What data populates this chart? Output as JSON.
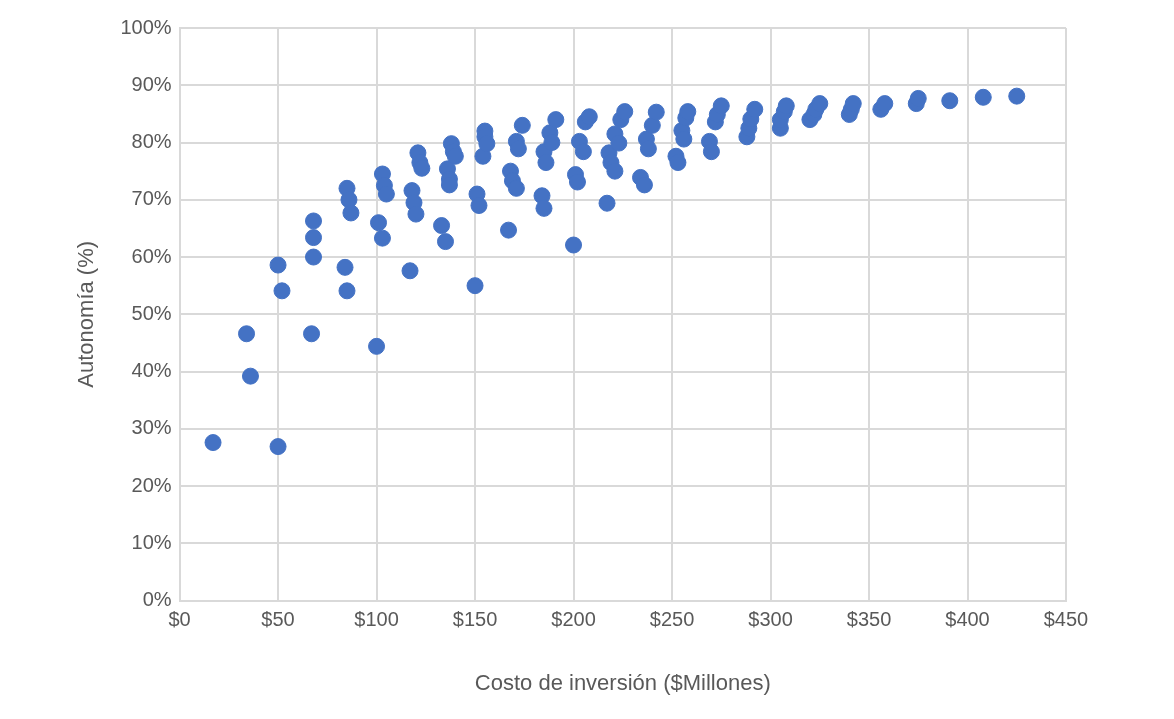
{
  "chart_data": {
    "type": "scatter",
    "xlabel": "Costo de inversión ($Millones)",
    "ylabel": "Autonomía (%)",
    "series": [
      {
        "color": "#4472c4",
        "x": [
          17,
          50,
          34,
          36,
          50,
          52,
          67,
          68,
          68,
          68,
          84,
          85,
          85,
          86,
          87,
          100,
          101,
          103,
          103,
          104,
          105,
          117,
          118,
          119,
          120,
          121,
          122,
          123,
          133,
          135,
          136,
          137,
          137,
          138,
          139,
          140,
          150,
          151,
          152,
          154,
          155,
          155,
          156,
          167,
          168,
          169,
          171,
          171,
          172,
          174,
          184,
          185,
          185,
          186,
          188,
          189,
          191,
          200,
          201,
          202,
          203,
          205,
          206,
          208,
          217,
          218,
          219,
          221,
          221,
          223,
          224,
          226,
          234,
          236,
          237,
          238,
          240,
          242,
          252,
          253,
          255,
          256,
          257,
          258,
          269,
          270,
          272,
          273,
          275,
          288,
          289,
          290,
          292,
          305,
          305,
          307,
          308,
          320,
          322,
          323,
          325,
          340,
          341,
          342,
          356,
          358,
          374,
          375,
          391,
          408,
          425
        ],
        "values": [
          27.6,
          26.9,
          46.6,
          39.2,
          58.6,
          54.1,
          46.6,
          66.3,
          63.4,
          60,
          58.2,
          54.1,
          72,
          70,
          67.7,
          44.4,
          66,
          63.3,
          74.5,
          72.5,
          71,
          57.6,
          71.6,
          69.5,
          67.5,
          78.2,
          76.5,
          75.5,
          65.5,
          62.7,
          75.4,
          73.6,
          72.6,
          79.8,
          78.4,
          77.6,
          55,
          71,
          69,
          77.6,
          82,
          81,
          79.8,
          64.7,
          75,
          73.3,
          72,
          80.2,
          78.9,
          83,
          70.7,
          68.5,
          78.4,
          76.5,
          81.7,
          80,
          84,
          62.1,
          74.4,
          73.1,
          80.2,
          78.4,
          83.6,
          84.5,
          69.4,
          78.2,
          76.5,
          75,
          81.5,
          79.9,
          84,
          85.4,
          73.9,
          72.6,
          80.6,
          78.9,
          83,
          85.3,
          77.6,
          76.5,
          82.1,
          80.6,
          84.3,
          85.4,
          80.2,
          78.4,
          83.6,
          84.9,
          86.4,
          81,
          82.5,
          84.1,
          85.8,
          82.5,
          84,
          85.4,
          86.4,
          84,
          84.9,
          85.8,
          86.8,
          84.9,
          85.8,
          86.8,
          85.8,
          86.8,
          86.8,
          87.7,
          87.3,
          87.9,
          88.1
        ]
      }
    ],
    "xlim": [
      0,
      450
    ],
    "xticks": [
      {
        "value": 0,
        "label": "$0"
      },
      {
        "value": 50,
        "label": "$50"
      },
      {
        "value": 100,
        "label": "$100"
      },
      {
        "value": 150,
        "label": "$150"
      },
      {
        "value": 200,
        "label": "$200"
      },
      {
        "value": 250,
        "label": "$250"
      },
      {
        "value": 300,
        "label": "$300"
      },
      {
        "value": 350,
        "label": "$350"
      },
      {
        "value": 400,
        "label": "$400"
      },
      {
        "value": 450,
        "label": "$450"
      }
    ],
    "ylim": [
      0,
      100
    ],
    "yticks": [
      {
        "value": 0,
        "label": "0%"
      },
      {
        "value": 10,
        "label": "10%"
      },
      {
        "value": 20,
        "label": "20%"
      },
      {
        "value": 30,
        "label": "30%"
      },
      {
        "value": 40,
        "label": "40%"
      },
      {
        "value": 50,
        "label": "50%"
      },
      {
        "value": 60,
        "label": "60%"
      },
      {
        "value": 70,
        "label": "70%"
      },
      {
        "value": 80,
        "label": "80%"
      },
      {
        "value": 90,
        "label": "90%"
      },
      {
        "value": 100,
        "label": "100%"
      }
    ],
    "grid": true,
    "marker": "circle"
  }
}
